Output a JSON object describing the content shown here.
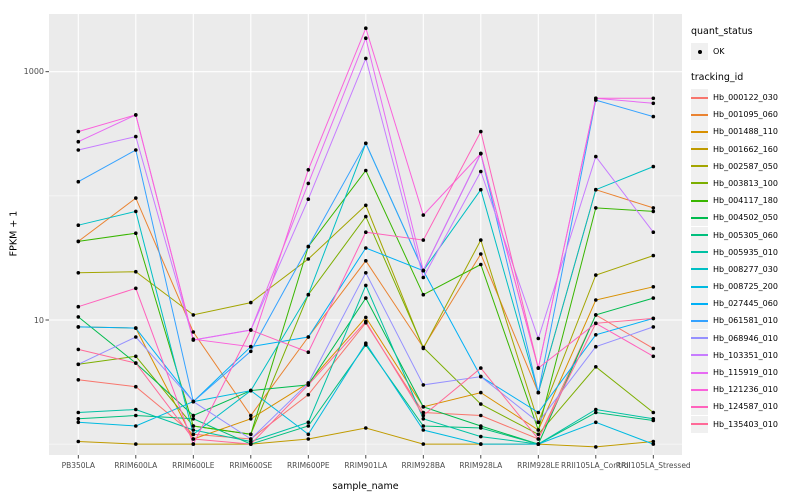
{
  "figure": {
    "background": "#FFFFFF",
    "panel_background": "#EBEBEB",
    "grid_color": "#FFFFFF",
    "tick_text_color": "#4D4D4D",
    "point_color": "#000000"
  },
  "axes": {
    "y": {
      "label": "FPKM + 1",
      "tick_labels": [
        "1000",
        "10"
      ],
      "scale": "log10"
    },
    "x": {
      "label": "sample_name"
    }
  },
  "legend": {
    "quant_status": {
      "title": "quant_status",
      "items": [
        {
          "label": "OK",
          "symbol": "black-point"
        }
      ]
    },
    "tracking_id": {
      "title": "tracking_id"
    }
  },
  "chart_data": {
    "type": "line",
    "title": "",
    "xlabel": "sample_name",
    "ylabel": "FPKM + 1",
    "yscale": "log10",
    "ylim": [
      0.9,
      2500
    ],
    "y_ticks_shown": [
      10,
      1000
    ],
    "grid": true,
    "legend_position": "right",
    "point_marker": "black dot (quant_status OK)",
    "x": [
      "PB350LA",
      "RRIM600LA",
      "RRIM600LE",
      "RRIM600SE",
      "RRIM600PE",
      "RRIM901LA",
      "RRIM928BA",
      "RRIM928LA",
      "RRIM928LE",
      "RRII105LA_Control",
      "RRII105LA_Stressed"
    ],
    "series": [
      {
        "name": "Hb_000122_030",
        "color": "#F8766D",
        "values": [
          3.3,
          2.9,
          1.2,
          1.1,
          2.5,
          9.5,
          1.8,
          1.7,
          1.1,
          11,
          5.9
        ]
      },
      {
        "name": "Hb_001095_060",
        "color": "#EA8331",
        "values": [
          43,
          96,
          8,
          1.7,
          7.3,
          30,
          6,
          34,
          2.6,
          112,
          80
        ]
      },
      {
        "name": "Hb_001488_110",
        "color": "#D89000",
        "values": [
          8.8,
          8.6,
          1.1,
          1.6,
          3.1,
          10.5,
          2.0,
          2.6,
          1.3,
          14.5,
          18.5
        ]
      },
      {
        "name": "Hb_001662_160",
        "color": "#C09B00",
        "values": [
          1.05,
          1.0,
          1.0,
          1.0,
          1.1,
          1.35,
          1.0,
          1.0,
          1.0,
          0.95,
          1.05
        ]
      },
      {
        "name": "Hb_002587_050",
        "color": "#A3A500",
        "values": [
          24,
          24.5,
          11,
          13.8,
          31,
          84,
          5.9,
          44,
          1.5,
          23,
          33
        ]
      },
      {
        "name": "Hb_003813_100",
        "color": "#7CAE00",
        "values": [
          4.4,
          5.1,
          1.4,
          1.2,
          16,
          68,
          6,
          2.1,
          1.2,
          4.2,
          1.8
        ]
      },
      {
        "name": "Hb_004117_180",
        "color": "#39B600",
        "values": [
          43,
          50,
          1.4,
          1.2,
          39,
          160,
          16,
          28,
          1.3,
          80,
          75
        ]
      },
      {
        "name": "Hb_004502_050",
        "color": "#00BB4E",
        "values": [
          10.6,
          4.5,
          1.7,
          2.7,
          3.0,
          15,
          2.0,
          1.4,
          1.0,
          11,
          15
        ]
      },
      {
        "name": "Hb_005305_060",
        "color": "#00BF7D",
        "values": [
          1.6,
          1.7,
          1.6,
          1.0,
          1.4,
          6.3,
          1.4,
          1.35,
          1.0,
          1.8,
          1.55
        ]
      },
      {
        "name": "Hb_005935_010",
        "color": "#00C1A3",
        "values": [
          1.8,
          1.9,
          1.3,
          1.05,
          1.5,
          19,
          1.6,
          1.15,
          1.0,
          1.9,
          1.6
        ]
      },
      {
        "name": "Hb_008277_030",
        "color": "#00BFC4",
        "values": [
          58,
          75,
          1.2,
          2.7,
          16,
          265,
          25,
          112,
          2.6,
          112,
          172
        ]
      },
      {
        "name": "Hb_008725_200",
        "color": "#00BAE0",
        "values": [
          1.5,
          1.4,
          2.2,
          2.7,
          1.2,
          6.5,
          1.3,
          1.0,
          1.0,
          1.5,
          1.0
        ]
      },
      {
        "name": "Hb_027445_060",
        "color": "#00B0F6",
        "values": [
          8.8,
          8.6,
          2.2,
          6.1,
          7.3,
          38,
          25,
          3.5,
          1.8,
          7.6,
          10.3
        ]
      },
      {
        "name": "Hb_061581_010",
        "color": "#35A2FF",
        "values": [
          130,
          234,
          2.2,
          5.6,
          39,
          265,
          25,
          219,
          2.6,
          590,
          435
        ]
      },
      {
        "name": "Hb_068946_010",
        "color": "#9590FF",
        "values": [
          4.4,
          7.3,
          2.2,
          1.1,
          3.1,
          24,
          3.0,
          3.5,
          1.5,
          6.1,
          8.8
        ]
      },
      {
        "name": "Hb_103351_010",
        "color": "#C77CFF",
        "values": [
          234,
          300,
          6.9,
          8.3,
          94,
          1280,
          22,
          157,
          7.1,
          207,
          51
        ]
      },
      {
        "name": "Hb_115919_010",
        "color": "#E76BF3",
        "values": [
          273,
          449,
          6.9,
          8.3,
          126,
          1860,
          25,
          219,
          4.1,
          611,
          557
        ]
      },
      {
        "name": "Hb_121236_010",
        "color": "#FA62DB",
        "values": [
          329,
          449,
          7.0,
          6.1,
          162,
          2240,
          70,
          219,
          4.1,
          611,
          611
        ]
      },
      {
        "name": "Hb_124587_010",
        "color": "#FF62BC",
        "values": [
          12.8,
          18,
          1.0,
          8.3,
          5.5,
          51,
          44,
          329,
          4.1,
          9.4,
          5.1
        ]
      },
      {
        "name": "Hb_135403_010",
        "color": "#FF6A98",
        "values": [
          5.8,
          4.5,
          1.1,
          1.0,
          3.0,
          9.7,
          1.7,
          4.1,
          1.1,
          9.4,
          10.3
        ]
      }
    ]
  }
}
